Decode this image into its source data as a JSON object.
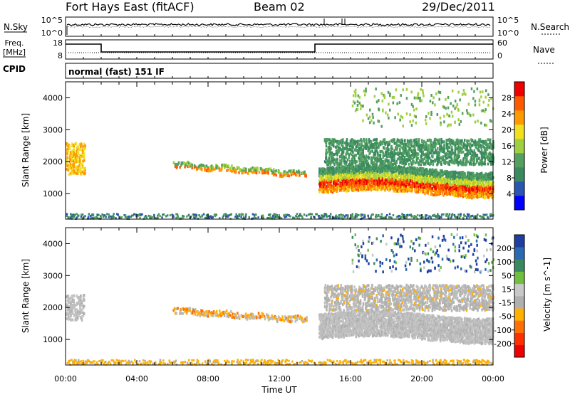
{
  "header": {
    "site": "Fort Hays East (fitACF)",
    "beam": "Beam 02",
    "date": "29/Dec/2011"
  },
  "panels": {
    "noise": {
      "left_label": "N.Sky",
      "right_label": "N.Search",
      "left_ticks": [
        "10^5",
        "10^0"
      ],
      "right_ticks": [
        "10^5",
        "10^0"
      ]
    },
    "freq": {
      "left_label_1": "Freq.",
      "left_label_2": "[MHz]",
      "right_label": "Nave",
      "left_ticks": [
        "18",
        "8"
      ],
      "right_ticks": [
        "60",
        "0"
      ]
    },
    "cpid": {
      "label": "CPID",
      "text": "normal (fast) 151 IF"
    }
  },
  "colors": {
    "power_scale": [
      "#0000ff",
      "#2a55b0",
      "#3a8a60",
      "#53a060",
      "#a0d040",
      "#f0e020",
      "#ff9a00",
      "#ff5a00",
      "#ee0000"
    ],
    "velocity_scale": [
      "#1f3fa0",
      "#2a6ab0",
      "#3a8a60",
      "#70c040",
      "#c8c8c8",
      "#b0b0b0",
      "#ffb000",
      "#ff7000",
      "#ff3000",
      "#ee0000"
    ],
    "ground_scatter": "#bebebe"
  },
  "chart_data": [
    {
      "type": "heatmap",
      "panel": "power",
      "ylabel": "Slant Range [km]",
      "yticks": [
        "1000",
        "2000",
        "3000",
        "4000"
      ],
      "ylim": [
        200,
        4500
      ],
      "xlim_hours": [
        0,
        24
      ],
      "colorbar_label": "Power [dB]",
      "colorbar_ticks": [
        "28",
        "24",
        "20",
        "16",
        "12",
        "8",
        "4"
      ],
      "colorbar_range": [
        0,
        32
      ],
      "features": [
        {
          "name": "early-echoes",
          "start_hour": 0.0,
          "end_hour": 1.1,
          "range_km": [
            1600,
            2600
          ],
          "level_db": 22
        },
        {
          "name": "main-band-day",
          "start_hour": 6.0,
          "end_hour": 13.5,
          "range_km": [
            1550,
            1950
          ],
          "level_db": 18
        },
        {
          "name": "main-band-night",
          "start_hour": 14.2,
          "end_hour": 24.0,
          "range_km": [
            950,
            1900
          ],
          "level_db": 26
        },
        {
          "name": "upper-band-night",
          "start_hour": 14.5,
          "end_hour": 24.0,
          "range_km": [
            1900,
            2700
          ],
          "level_db": 10
        },
        {
          "name": "high-range-patches",
          "start_hour": 16.0,
          "end_hour": 24.0,
          "range_km": [
            3100,
            4300
          ],
          "level_db": 14
        },
        {
          "name": "near-range-echoes",
          "start_hour": 0.0,
          "end_hour": 24.0,
          "range_km": [
            200,
            350
          ],
          "level_db": 8
        }
      ]
    },
    {
      "type": "heatmap",
      "panel": "velocity",
      "ylabel": "Slant Range [km]",
      "yticks": [
        "1000",
        "2000",
        "3000",
        "4000"
      ],
      "ylim": [
        200,
        4500
      ],
      "xlim_hours": [
        0,
        24
      ],
      "xlabel": "Time UT",
      "xticks": [
        "00:00",
        "04:00",
        "08:00",
        "12:00",
        "16:00",
        "20:00",
        "00:00"
      ],
      "colorbar_label": "Velocity [m s^-1]",
      "colorbar_ticks": [
        "200",
        "100",
        "50",
        "15",
        "-15",
        "-50",
        "-100",
        "-200"
      ],
      "features": [
        {
          "name": "early-ground-scatter",
          "start_hour": 0.0,
          "end_hour": 1.0,
          "range_km": [
            1600,
            2400
          ],
          "velocity": 0
        },
        {
          "name": "main-band-day",
          "start_hour": 6.0,
          "end_hour": 13.5,
          "range_km": [
            1550,
            1950
          ],
          "velocity": -60
        },
        {
          "name": "night-ground-scatter",
          "start_hour": 14.2,
          "end_hour": 24.0,
          "range_km": [
            900,
            1900
          ],
          "velocity": 0
        },
        {
          "name": "upper-band-night",
          "start_hour": 14.5,
          "end_hour": 24.0,
          "range_km": [
            1900,
            2700
          ],
          "velocity": -20
        },
        {
          "name": "high-range-patches",
          "start_hour": 16.0,
          "end_hour": 24.0,
          "range_km": [
            3100,
            4300
          ],
          "velocity": 150
        },
        {
          "name": "near-range-echoes",
          "start_hour": 0.0,
          "end_hour": 24.0,
          "range_km": [
            200,
            350
          ],
          "velocity": -50
        }
      ]
    }
  ],
  "series": {
    "freq_steps": [
      {
        "start_hour": 0.0,
        "end_hour": 2.0,
        "level": "high"
      },
      {
        "start_hour": 2.0,
        "end_hour": 14.0,
        "level": "low"
      },
      {
        "start_hour": 14.0,
        "end_hour": 24.0,
        "level": "high"
      }
    ]
  }
}
